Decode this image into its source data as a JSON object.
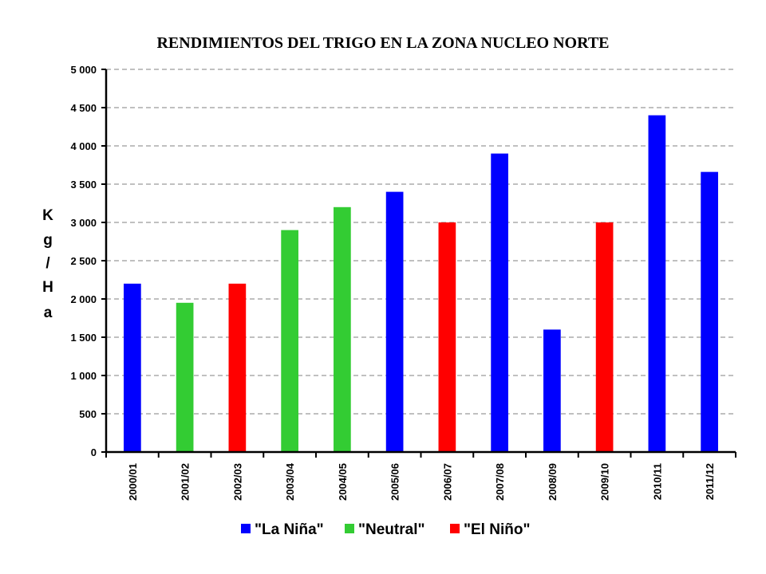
{
  "chart_data": {
    "type": "bar",
    "title": "RENDIMIENTOS DEL TRIGO EN LA ZONA NUCLEO NORTE",
    "ylabel": "Kg/Ha",
    "ylabel_chars": [
      "K",
      "g",
      "/",
      "H",
      "a"
    ],
    "xlabel": "",
    "ylim": [
      0,
      5000
    ],
    "yticks": [
      0,
      500,
      1000,
      1500,
      2000,
      2500,
      3000,
      3500,
      4000,
      4500,
      5000
    ],
    "ytick_labels": [
      "0",
      "500",
      "1 000",
      "1 500",
      "2 000",
      "2 500",
      "3 000",
      "3 500",
      "4 000",
      "4 500",
      "5 000"
    ],
    "grid": true,
    "legend_position": "bottom",
    "categories": [
      "2000/01",
      "2001/02",
      "2002/03",
      "2003/04",
      "2004/05",
      "2005/06",
      "2006/07",
      "2007/08",
      "2008/09",
      "2009/10",
      "2010/11",
      "2011/12"
    ],
    "values": [
      2200,
      1950,
      2200,
      2900,
      3200,
      3400,
      3000,
      3900,
      1600,
      3000,
      4400,
      3660
    ],
    "groups": [
      "La Niña",
      "Neutral",
      "El Niño",
      "Neutral",
      "Neutral",
      "La Niña",
      "El Niño",
      "La Niña",
      "La Niña",
      "El Niño",
      "La Niña",
      "La Niña"
    ],
    "legend": [
      {
        "name": "\"La Niña\"",
        "key": "La Niña",
        "color": "#0000ff"
      },
      {
        "name": "\"Neutral\"",
        "key": "Neutral",
        "color": "#33cc33"
      },
      {
        "name": "\"El Niño\"",
        "key": "El Niño",
        "color": "#ff0000"
      }
    ]
  }
}
